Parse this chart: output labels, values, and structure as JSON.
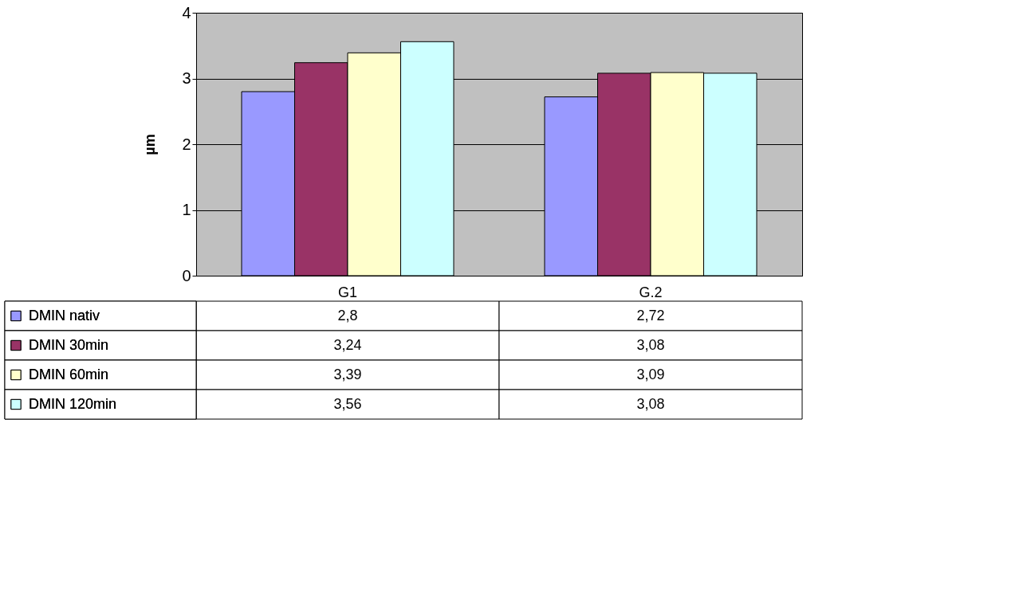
{
  "chart_data": {
    "type": "bar",
    "ylabel": "µm",
    "categories": [
      "G1",
      "G.2"
    ],
    "series": [
      {
        "name": "DMIN nativ",
        "color": "#9999ff",
        "values": [
          2.8,
          2.72
        ],
        "value_labels": [
          "2,8",
          "2,72"
        ]
      },
      {
        "name": "DMIN 30min",
        "color": "#993366",
        "values": [
          3.24,
          3.08
        ],
        "value_labels": [
          "3,24",
          "3,08"
        ]
      },
      {
        "name": "DMIN 60min",
        "color": "#ffffcc",
        "values": [
          3.39,
          3.09
        ],
        "value_labels": [
          "3,39",
          "3,09"
        ]
      },
      {
        "name": "DMIN 120min",
        "color": "#ccffff",
        "values": [
          3.56,
          3.08
        ],
        "value_labels": [
          "3,56",
          "3,08"
        ]
      }
    ],
    "ylim": [
      0,
      4
    ],
    "yticks": [
      0,
      1,
      2,
      3,
      4
    ],
    "grid": "y",
    "legend": "bottom left"
  }
}
